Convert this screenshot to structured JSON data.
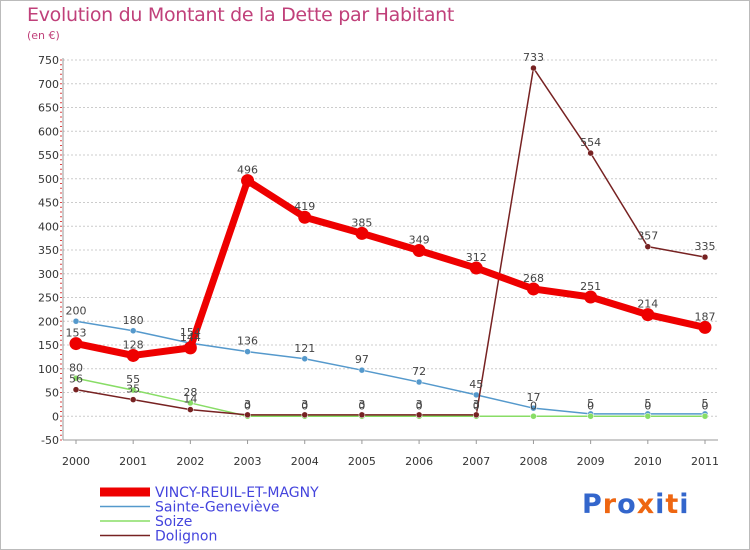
{
  "chart_data": {
    "type": "line",
    "title": "Evolution du Montant de la Dette par Habitant",
    "subtitle": "(en €)",
    "x": [
      "2000",
      "2001",
      "2002",
      "2003",
      "2004",
      "2005",
      "2006",
      "2007",
      "2008",
      "2009",
      "2010",
      "2011"
    ],
    "ylim": [
      -50,
      750
    ],
    "yticks": [
      -50,
      0,
      50,
      100,
      150,
      200,
      250,
      300,
      350,
      400,
      450,
      500,
      550,
      600,
      650,
      700,
      750
    ],
    "grid": "horizontal",
    "legend_position": "bottom-left",
    "series": [
      {
        "name": "VINCY-REUIL-ET-MAGNY",
        "color": "#ee0000",
        "values": [
          153,
          128,
          144,
          496,
          419,
          385,
          349,
          312,
          268,
          251,
          214,
          187
        ]
      },
      {
        "name": "Sainte-Geneviève",
        "color": "#5599cc",
        "values": [
          200,
          180,
          154,
          136,
          121,
          97,
          72,
          45,
          17,
          5,
          5,
          5
        ]
      },
      {
        "name": "Soize",
        "color": "#88dd66",
        "values": [
          80,
          55,
          28,
          0,
          0,
          0,
          0,
          0,
          0,
          0,
          0,
          0
        ]
      },
      {
        "name": "Dolignon",
        "color": "#772222",
        "values": [
          56,
          35,
          14,
          3,
          3,
          3,
          3,
          3,
          733,
          554,
          357,
          335
        ]
      }
    ],
    "data_labels": {
      "VINCY-REUIL-ET-MAGNY": [
        "153",
        "128",
        "144",
        "496",
        "419",
        "385",
        "349",
        "312",
        "268",
        "251",
        "214",
        "187"
      ],
      "Sainte-Geneviève": [
        "200",
        "180",
        "154",
        "136",
        "121",
        "97",
        "72",
        "45",
        "17",
        "5",
        "5",
        "5"
      ],
      "Soize": [
        "80",
        "55",
        "28",
        "0",
        "0",
        "0",
        "0",
        "0",
        "0",
        "0",
        "0",
        "0"
      ],
      "Dolignon": [
        "56",
        "35",
        "14",
        "3",
        "3",
        "3",
        "3",
        "3",
        "733",
        "554",
        "357",
        "335"
      ]
    }
  },
  "brand": {
    "text": "Proxiti",
    "colors": [
      "#3366cc",
      "#ee6611",
      "#3366cc",
      "#ee6611",
      "#3366cc",
      "#ee6611",
      "#3366cc"
    ]
  }
}
